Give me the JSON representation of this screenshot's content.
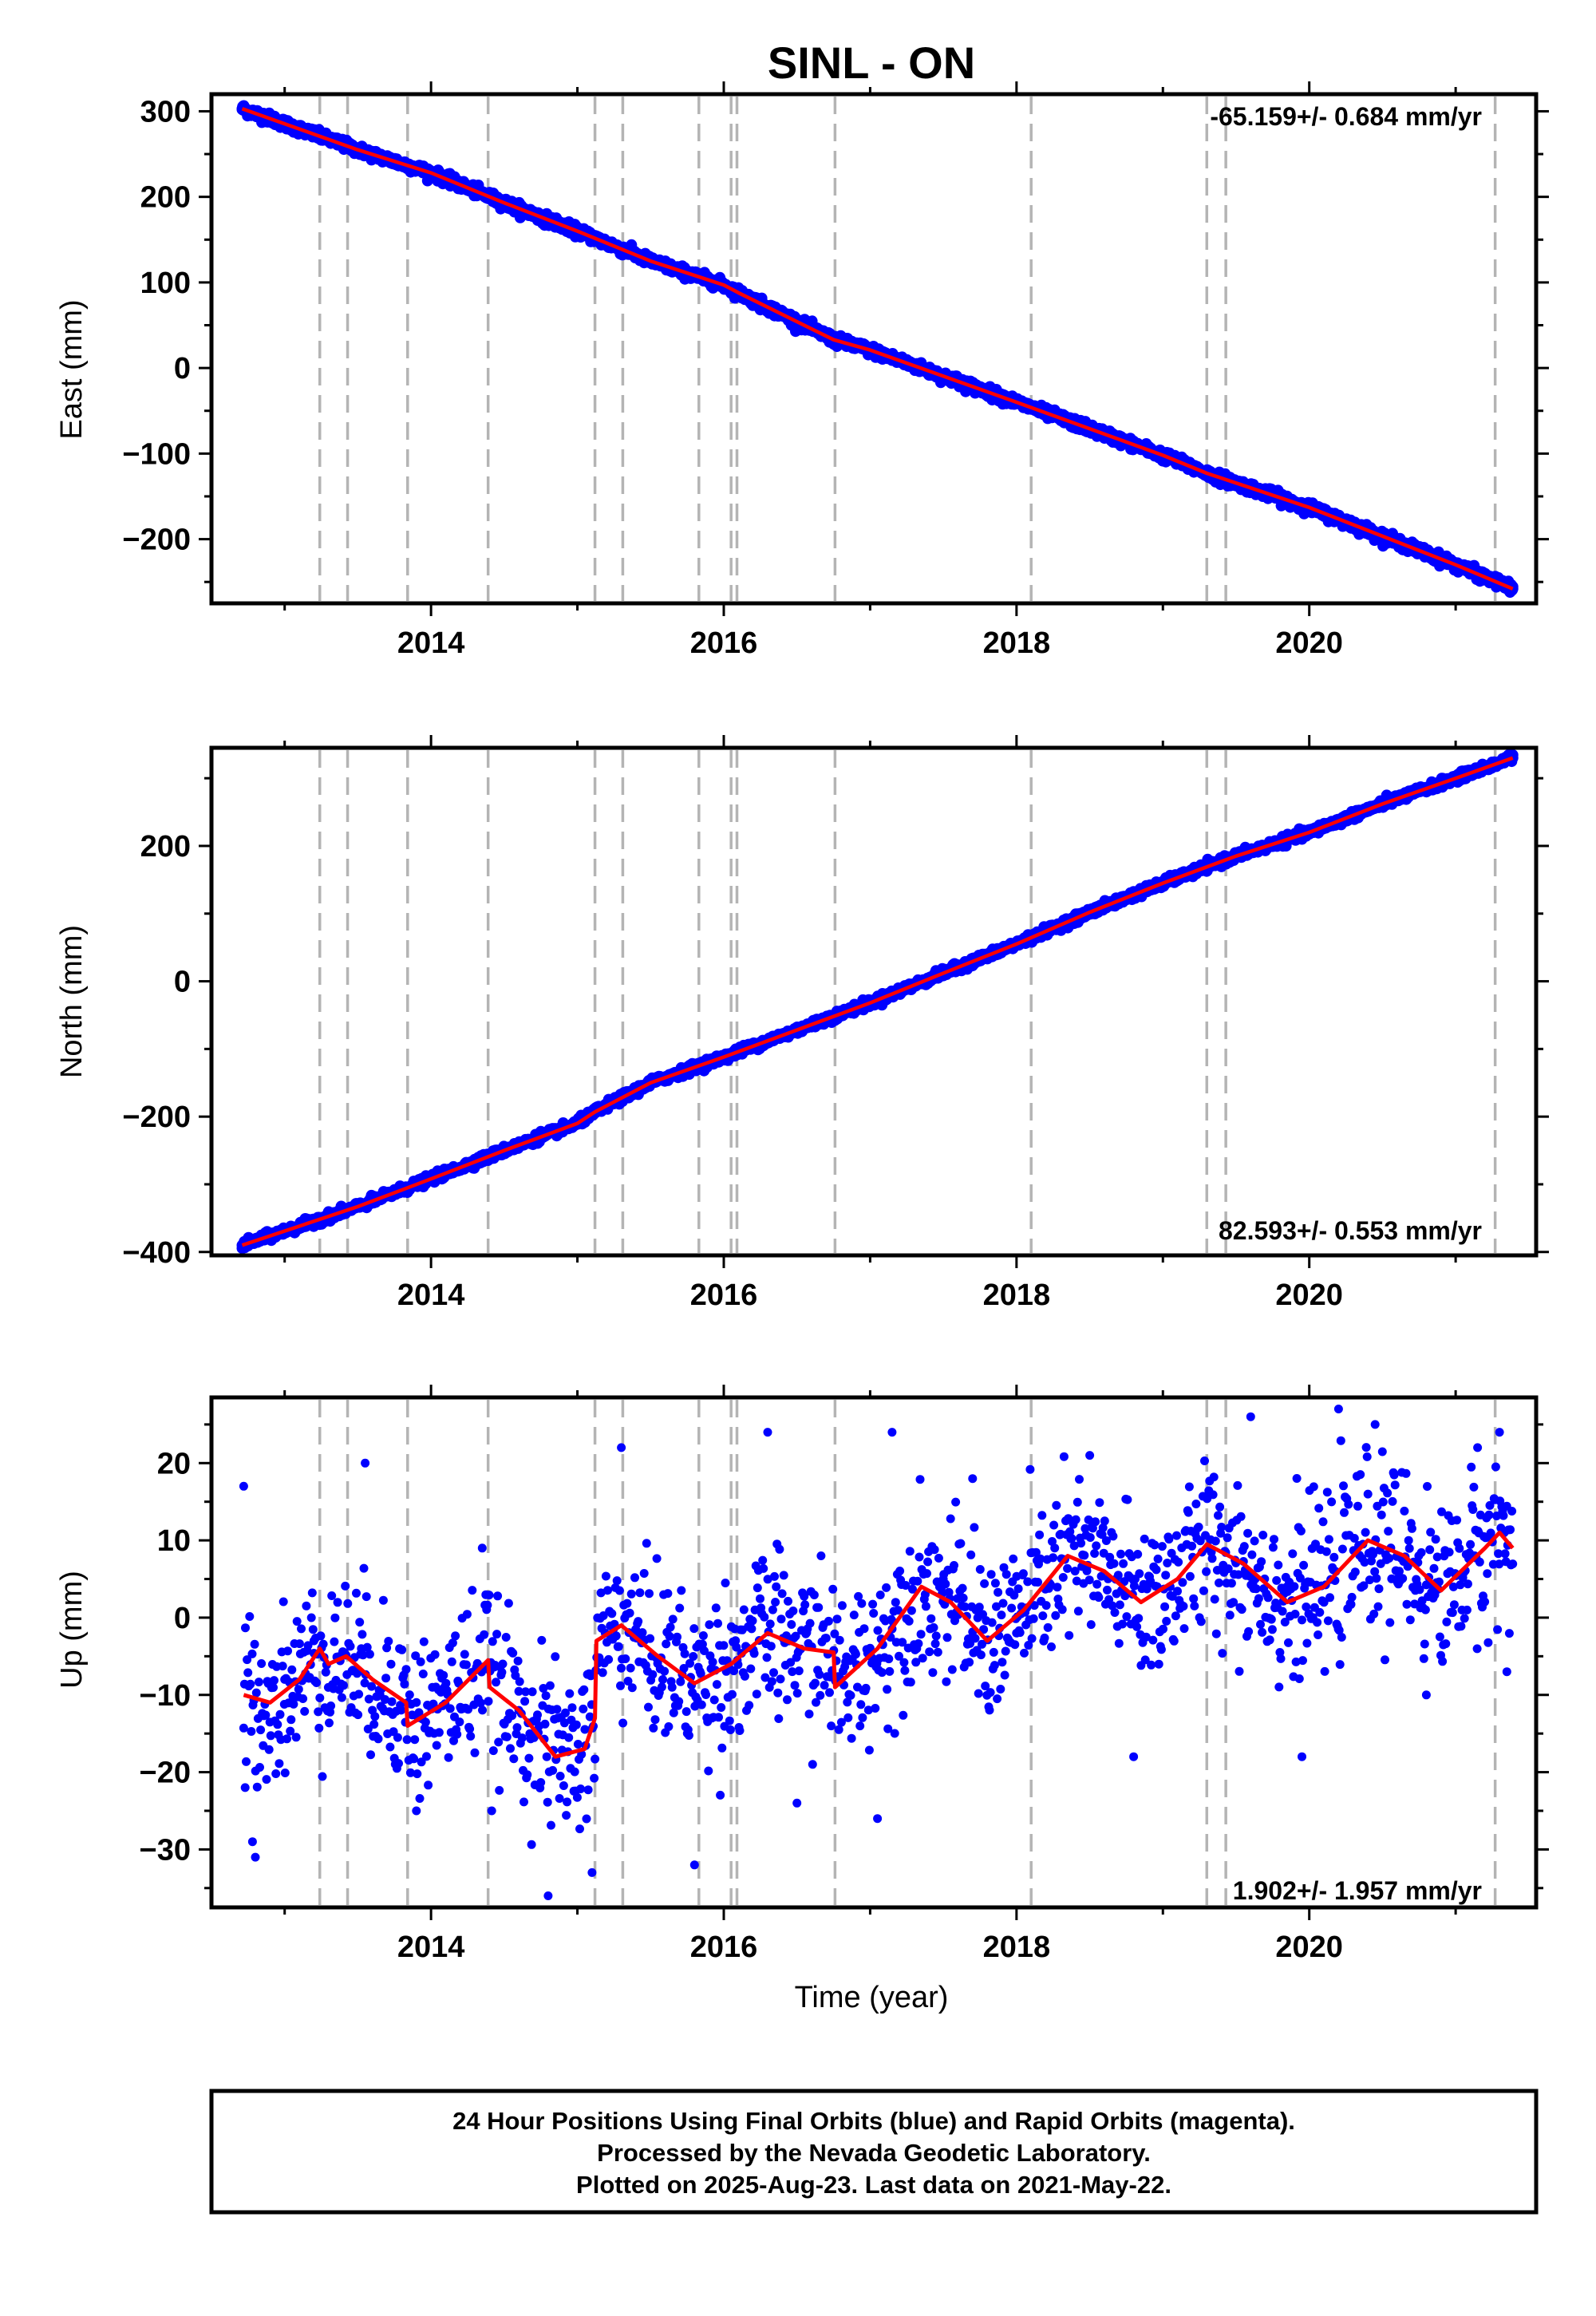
{
  "title": "SINL - ON",
  "xlabel": "Time (year)",
  "footer": {
    "line1": "24 Hour Positions Using Final Orbits (blue) and Rapid Orbits (magenta).",
    "line2": "Processed by the Nevada Geodetic Laboratory.",
    "line3": "Plotted on 2025-Aug-23. Last data on 2021-May-22."
  },
  "colors": {
    "points": "#0000ff",
    "fit": "#ff0000",
    "steps": "#b4b4b4",
    "frame": "#000000"
  },
  "chart_data": [
    {
      "type": "scatter",
      "name": "east",
      "ylabel": "East (mm)",
      "rate": "-65.159+/- 0.684 mm/yr",
      "xlim": [
        2012.5,
        2021.55
      ],
      "ylim": [
        -275,
        320
      ],
      "xticks": [
        2014,
        2016,
        2018,
        2020
      ],
      "yticks": [
        300,
        200,
        100,
        0,
        -100,
        -200
      ],
      "series": [
        {
          "type": "scatter",
          "x": [
            2012.71,
            2012.8,
            2013.0,
            2013.25,
            2013.5,
            2013.75,
            2014.0,
            2014.25,
            2014.5,
            2014.75,
            2015.0,
            2015.25,
            2015.5,
            2015.75,
            2016.0,
            2016.1,
            2016.25,
            2016.5,
            2016.75,
            2017.0,
            2017.25,
            2017.5,
            2017.75,
            2018.0,
            2018.25,
            2018.5,
            2018.75,
            2019.0,
            2019.25,
            2019.5,
            2019.75,
            2020.0,
            2020.25,
            2020.5,
            2020.75,
            2021.0,
            2021.25,
            2021.39
          ],
          "y": [
            303,
            297,
            287,
            270,
            254,
            240,
            228,
            212,
            192,
            172,
            158,
            144,
            124,
            108,
            96,
            86,
            68,
            50,
            32,
            22,
            6,
            -10,
            -25,
            -38,
            -55,
            -72,
            -88,
            -100,
            -120,
            -135,
            -150,
            -160,
            -180,
            -198,
            -215,
            -228,
            -245,
            -258
          ]
        },
        {
          "type": "line",
          "x": [
            2012.71,
            2013.5,
            2014.0,
            2014.5,
            2015.0,
            2015.5,
            2016.0,
            2016.1,
            2016.75,
            2017.0,
            2018.0,
            2019.0,
            2019.3,
            2020.0,
            2021.0,
            2021.39
          ],
          "y": [
            303,
            255,
            228,
            193,
            160,
            125,
            97,
            88,
            33,
            21,
            -40,
            -102,
            -123,
            -163,
            -230,
            -258
          ]
        }
      ]
    },
    {
      "type": "scatter",
      "name": "north",
      "ylabel": "North (mm)",
      "rate": "82.593+/- 0.553 mm/yr",
      "xlim": [
        2012.5,
        2021.55
      ],
      "ylim": [
        -405,
        345
      ],
      "xticks": [
        2014,
        2016,
        2018,
        2020
      ],
      "yticks": [
        200,
        0,
        -200,
        -400
      ],
      "series": [
        {
          "type": "scatter",
          "x": [
            2012.71,
            2013.0,
            2013.25,
            2013.5,
            2013.75,
            2014.0,
            2014.25,
            2014.5,
            2014.75,
            2015.0,
            2015.12,
            2015.25,
            2015.5,
            2015.75,
            2016.0,
            2016.25,
            2016.5,
            2016.75,
            2017.0,
            2017.25,
            2017.5,
            2017.75,
            2018.0,
            2018.25,
            2018.5,
            2018.75,
            2019.0,
            2019.25,
            2019.5,
            2019.75,
            2020.0,
            2020.25,
            2020.5,
            2020.75,
            2021.0,
            2021.25,
            2021.39
          ],
          "y": [
            -390,
            -372,
            -355,
            -330,
            -308,
            -290,
            -270,
            -245,
            -222,
            -205,
            -193,
            -175,
            -150,
            -128,
            -112,
            -95,
            -72,
            -52,
            -30,
            -8,
            14,
            36,
            55,
            80,
            105,
            125,
            145,
            165,
            185,
            200,
            218,
            240,
            262,
            282,
            300,
            318,
            330
          ]
        },
        {
          "type": "line",
          "x": [
            2012.71,
            2013.5,
            2014.0,
            2014.5,
            2015.0,
            2015.12,
            2015.5,
            2016.0,
            2016.5,
            2017.0,
            2017.5,
            2018.0,
            2018.5,
            2019.0,
            2019.5,
            2020.0,
            2020.5,
            2021.0,
            2021.39
          ],
          "y": [
            -390,
            -333,
            -292,
            -250,
            -210,
            -193,
            -150,
            -112,
            -72,
            -32,
            12,
            55,
            102,
            145,
            185,
            220,
            262,
            300,
            330
          ]
        }
      ]
    },
    {
      "type": "scatter",
      "name": "up",
      "ylabel": "Up (mm)",
      "rate": "1.902+/- 1.957 mm/yr",
      "xlim": [
        2012.5,
        2021.55
      ],
      "ylim": [
        -37.5,
        28.5
      ],
      "xticks": [
        2014,
        2016,
        2018,
        2020
      ],
      "yticks": [
        20,
        10,
        0,
        -10,
        -20,
        -30
      ],
      "series": [
        {
          "type": "scatter",
          "x": [
            2012.72,
            2012.73,
            2012.78,
            2012.8,
            2013.0,
            2013.2,
            2013.5,
            2013.55,
            2013.9,
            2014.35,
            2014.6,
            2014.8,
            2015.1,
            2015.3,
            2015.8,
            2016.3,
            2016.5,
            2017.05,
            2017.15,
            2017.5,
            2017.7,
            2018.0,
            2018.5,
            2018.8,
            2019.05,
            2019.6,
            2019.95,
            2020.2,
            2020.45,
            2020.6,
            2020.8,
            2021.15,
            2021.3,
            2021.35
          ],
          "y": [
            17,
            -22,
            -29,
            -31,
            -8,
            -3,
            -7,
            20,
            -25,
            9,
            -12,
            -36,
            -33,
            22,
            -32,
            24,
            -24,
            -26,
            24,
            5,
            18,
            -2,
            21,
            -18,
            4,
            26,
            -18,
            27,
            25,
            5,
            -10,
            22,
            24,
            -7
          ]
        },
        {
          "type": "line",
          "x": [
            2012.72,
            2012.9,
            2013.1,
            2013.24,
            2013.3,
            2013.42,
            2013.6,
            2013.83,
            2013.84,
            2014.1,
            2014.39,
            2014.4,
            2014.6,
            2014.85,
            2015.05,
            2015.12,
            2015.13,
            2015.3,
            2015.55,
            2015.8,
            2016.05,
            2016.3,
            2016.55,
            2016.75,
            2016.76,
            2017.05,
            2017.35,
            2017.55,
            2017.8,
            2018.05,
            2018.35,
            2018.6,
            2018.85,
            2019.1,
            2019.3,
            2019.55,
            2019.85,
            2020.1,
            2020.4,
            2020.65,
            2020.9,
            2021.2,
            2021.3,
            2021.39
          ],
          "y": [
            -10,
            -11,
            -8,
            -4,
            -6,
            -5,
            -8,
            -11,
            -14,
            -11,
            -5.5,
            -9,
            -12,
            -18,
            -17,
            -13,
            -3,
            -1,
            -5,
            -8.5,
            -6,
            -2,
            -4,
            -4.5,
            -9,
            -4,
            4,
            2,
            -3,
            1,
            8,
            6,
            2,
            5,
            9.5,
            7,
            2,
            4,
            10,
            8,
            3.5,
            9,
            11,
            9
          ]
        }
      ]
    }
  ],
  "steps": [
    2013.24,
    2013.43,
    2013.84,
    2014.39,
    2015.12,
    2015.31,
    2015.83,
    2016.05,
    2016.09,
    2016.76,
    2018.1,
    2019.3,
    2019.43,
    2021.27
  ]
}
